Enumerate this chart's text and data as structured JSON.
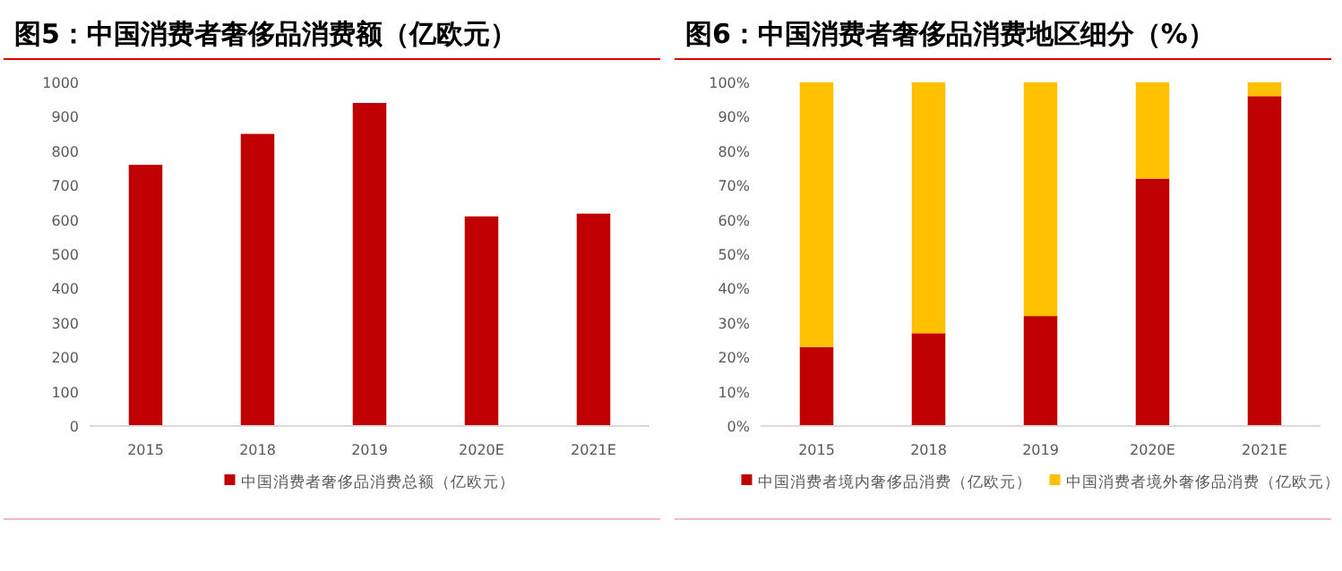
{
  "chart_data": [
    {
      "type": "bar",
      "title": "图5：中国消费者奢侈品消费额（亿欧元）",
      "categories": [
        "2015",
        "2018",
        "2019",
        "2020E",
        "2021E"
      ],
      "series": [
        {
          "name": "中国消费者奢侈品消费总额（亿欧元）",
          "color": "#c00000",
          "values": [
            760,
            850,
            940,
            610,
            618
          ]
        }
      ],
      "ylim": [
        0,
        1000
      ],
      "yticks": [
        0,
        100,
        200,
        300,
        400,
        500,
        600,
        700,
        800,
        900,
        1000
      ],
      "legend": "bottom"
    },
    {
      "type": "bar",
      "title": "图6：中国消费者奢侈品消费地区细分（%）",
      "categories": [
        "2015",
        "2018",
        "2019",
        "2020E",
        "2021E"
      ],
      "stacked": true,
      "series": [
        {
          "name": "中国消费者境内奢侈品消费（亿欧元）",
          "color": "#c00000",
          "values": [
            23,
            27,
            32,
            72,
            96
          ]
        },
        {
          "name": "中国消费者境外奢侈品消费（亿欧元）",
          "color": "#ffc000",
          "values": [
            77,
            73,
            68,
            28,
            4
          ]
        }
      ],
      "ylim": [
        0,
        100
      ],
      "yticks": [
        {
          "value": 0,
          "label": "0%"
        },
        {
          "value": 10,
          "label": "10%"
        },
        {
          "value": 20,
          "label": "20%"
        },
        {
          "value": 30,
          "label": "30%"
        },
        {
          "value": 40,
          "label": "40%"
        },
        {
          "value": 50,
          "label": "50%"
        },
        {
          "value": 60,
          "label": "60%"
        },
        {
          "value": 70,
          "label": "70%"
        },
        {
          "value": 80,
          "label": "80%"
        },
        {
          "value": 90,
          "label": "90%"
        },
        {
          "value": 100,
          "label": "100%"
        }
      ],
      "legend": "bottom"
    }
  ]
}
